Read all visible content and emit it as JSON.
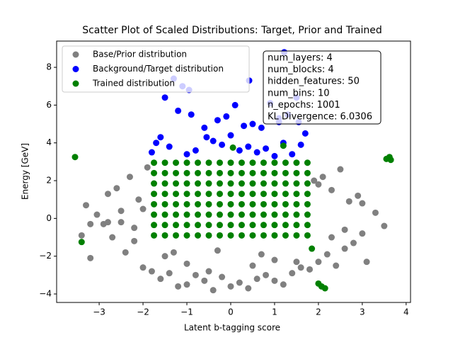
{
  "chart_data": {
    "type": "scatter",
    "title": "Scatter Plot of Scaled Distributions: Target, Prior and Trained",
    "x_label": "Latent b-tagging score",
    "y_label": "Energy [GeV]",
    "xlim": [
      -3.97,
      4.1
    ],
    "ylim": [
      -4.45,
      9.39
    ],
    "xticks": [
      {
        "value": -3,
        "label": "−3"
      },
      {
        "value": -2,
        "label": "−2"
      },
      {
        "value": -1,
        "label": "−1"
      },
      0,
      1,
      2,
      3,
      4
    ],
    "yticks": [
      {
        "value": -4,
        "label": "−4"
      },
      {
        "value": -2,
        "label": "−2"
      },
      0,
      2,
      4,
      6,
      8
    ],
    "grid": false,
    "legend": "upper left",
    "annotation": [
      "num_layers: 4",
      "num_blocks: 4",
      "hidden_features: 50",
      "num_bins: 10",
      "n_epochs: 1001",
      "KL Divergence: 6.0306"
    ],
    "series": [
      {
        "name": "Base/Prior distribution",
        "color": "#808080",
        "x": [
          -3.4,
          -3.3,
          -3.2,
          -3.05,
          -2.9,
          -2.8,
          -2.7,
          -2.6,
          -2.5,
          -2.4,
          -2.3,
          -2.2,
          -2.1,
          -2.0,
          -1.9,
          -1.8,
          -1.6,
          -1.4,
          -1.2,
          -1.0,
          -0.8,
          -0.6,
          -0.4,
          -0.2,
          0,
          0.2,
          0.4,
          0.6,
          0.8,
          1.0,
          1.2,
          1.4,
          1.6,
          1.8,
          2.0,
          2.1,
          2.2,
          2.3,
          2.4,
          2.5,
          2.6,
          2.7,
          2.8,
          2.9,
          3.0,
          3.1,
          3.3,
          3.5,
          -2.2,
          -2.0,
          -1.5,
          -1.0,
          -0.5,
          0.5,
          1.0,
          1.5,
          2.0,
          2.3,
          -2.5,
          2.6,
          -1.3,
          1.9,
          -2.8,
          3.0,
          -3.2,
          -0.3,
          0.7
        ],
        "values": [
          -0.9,
          0.7,
          -2.1,
          0.2,
          -0.3,
          1.3,
          -1.0,
          1.6,
          0.4,
          -1.8,
          2.2,
          -0.5,
          1.0,
          -2.6,
          2.7,
          -2.8,
          -3.2,
          -2.9,
          -3.6,
          -3.5,
          -3.0,
          -3.3,
          -3.8,
          -3.1,
          -3.6,
          -3.4,
          -3.7,
          -3.2,
          -3.0,
          -3.3,
          -3.5,
          -2.9,
          -2.6,
          -2.7,
          -2.3,
          2.2,
          -1.9,
          1.5,
          -2.5,
          2.6,
          -0.6,
          0.9,
          -1.3,
          1.2,
          -0.8,
          -2.3,
          0.3,
          -0.4,
          -1.2,
          0.5,
          -2.0,
          -2.4,
          -2.8,
          -2.5,
          -2.2,
          -2.3,
          1.8,
          -1.0,
          -0.2,
          -1.6,
          -1.8,
          2.0,
          -0.2,
          0.8,
          -0.3,
          -1.7,
          -1.9
        ]
      },
      {
        "name": "Background/Target distribution",
        "color": "#0000ff",
        "x": [
          -1.3,
          -1.1,
          -0.95,
          -1.5,
          -1.7,
          -1.8,
          -1.6,
          -1.4,
          -1.2,
          -0.9,
          -0.6,
          -0.3,
          -0.1,
          0.1,
          0.3,
          0.5,
          0.7,
          0.9,
          1.1,
          1.3,
          1.5,
          1.7,
          -0.8,
          -0.4,
          0.0,
          0.4,
          0.8,
          1.2,
          1.6,
          -1.0,
          0.2,
          0.6,
          1.0,
          1.4,
          1.22,
          0.42,
          1.1,
          -0.55,
          1.55,
          -0.2
        ],
        "values": [
          7.4,
          7.0,
          6.8,
          6.4,
          4.0,
          3.5,
          4.3,
          3.8,
          5.7,
          5.5,
          4.8,
          5.2,
          5.4,
          6.0,
          4.9,
          5.0,
          4.8,
          6.1,
          5.3,
          5.5,
          6.4,
          4.5,
          3.6,
          4.1,
          4.4,
          3.8,
          3.7,
          4.0,
          3.9,
          3.4,
          3.6,
          3.5,
          3.3,
          3.4,
          8.8,
          7.3,
          5.1,
          4.3,
          5.1,
          3.9
        ]
      },
      {
        "name": "Trained distribution",
        "color": "#008000",
        "x": [
          -1.75,
          -1.5,
          -1.25,
          -1.0,
          -0.75,
          -0.5,
          -0.25,
          0,
          0.25,
          0.5,
          0.75,
          1.0,
          1.25,
          1.5,
          1.75,
          -1.75,
          -1.5,
          -1.25,
          -1.0,
          -0.75,
          -0.5,
          -0.25,
          0,
          0.25,
          0.5,
          0.75,
          1.0,
          1.25,
          1.5,
          1.75,
          -1.75,
          -1.5,
          -1.25,
          -1.0,
          -0.75,
          -0.5,
          -0.25,
          0,
          0.25,
          0.5,
          0.75,
          1.0,
          1.25,
          1.5,
          1.75,
          -1.75,
          -1.5,
          -1.25,
          -1.0,
          -0.75,
          -0.5,
          -0.25,
          0,
          0.25,
          0.5,
          0.75,
          1.0,
          1.25,
          1.5,
          1.75,
          -1.75,
          -1.5,
          -1.25,
          -1.0,
          -0.75,
          -0.5,
          -0.25,
          0,
          0.25,
          0.5,
          0.75,
          1.0,
          1.25,
          1.5,
          1.75,
          -1.75,
          -1.5,
          -1.25,
          -1.0,
          -0.75,
          -0.5,
          -0.25,
          0,
          0.25,
          0.5,
          0.75,
          1.0,
          1.25,
          1.5,
          1.75,
          -1.75,
          -1.5,
          -1.25,
          -1.0,
          -0.75,
          -0.5,
          -0.25,
          0,
          0.25,
          0.5,
          0.75,
          1.0,
          1.25,
          1.5,
          1.75,
          -1.75,
          -1.5,
          -1.25,
          -1.0,
          -0.75,
          -0.5,
          -0.25,
          0,
          0.25,
          0.5,
          0.75,
          1.0,
          1.25,
          1.5,
          1.75,
          -3.55,
          -3.4,
          3.55,
          3.62,
          3.65,
          2.0,
          2.07,
          2.15,
          1.85,
          0.05,
          1.2
        ],
        "values": [
          -0.9,
          -0.9,
          -0.9,
          -0.9,
          -0.9,
          -0.9,
          -0.9,
          -0.9,
          -0.9,
          -0.9,
          -0.9,
          -0.9,
          -0.9,
          -0.9,
          -0.9,
          -0.35,
          -0.35,
          -0.35,
          -0.35,
          -0.35,
          -0.35,
          -0.35,
          -0.35,
          -0.35,
          -0.35,
          -0.35,
          -0.35,
          -0.35,
          -0.35,
          -0.35,
          0.2,
          0.2,
          0.2,
          0.2,
          0.2,
          0.2,
          0.2,
          0.2,
          0.2,
          0.2,
          0.2,
          0.2,
          0.2,
          0.2,
          0.2,
          0.75,
          0.75,
          0.75,
          0.75,
          0.75,
          0.75,
          0.75,
          0.75,
          0.75,
          0.75,
          0.75,
          0.75,
          0.75,
          0.75,
          0.75,
          1.3,
          1.3,
          1.3,
          1.3,
          1.3,
          1.3,
          1.3,
          1.3,
          1.3,
          1.3,
          1.3,
          1.3,
          1.3,
          1.3,
          1.3,
          1.85,
          1.85,
          1.85,
          1.85,
          1.85,
          1.85,
          1.85,
          1.85,
          1.85,
          1.85,
          1.85,
          1.85,
          1.85,
          1.85,
          1.85,
          2.4,
          2.4,
          2.4,
          2.4,
          2.4,
          2.4,
          2.4,
          2.4,
          2.4,
          2.4,
          2.4,
          2.4,
          2.4,
          2.4,
          2.4,
          2.95,
          2.95,
          2.95,
          2.95,
          2.95,
          2.95,
          2.95,
          2.95,
          2.95,
          2.95,
          2.95,
          2.95,
          2.95,
          2.95,
          2.95,
          3.25,
          -1.25,
          3.15,
          3.25,
          3.1,
          -3.45,
          -3.6,
          -3.7,
          -1.6,
          3.75,
          3.85
        ]
      }
    ]
  }
}
